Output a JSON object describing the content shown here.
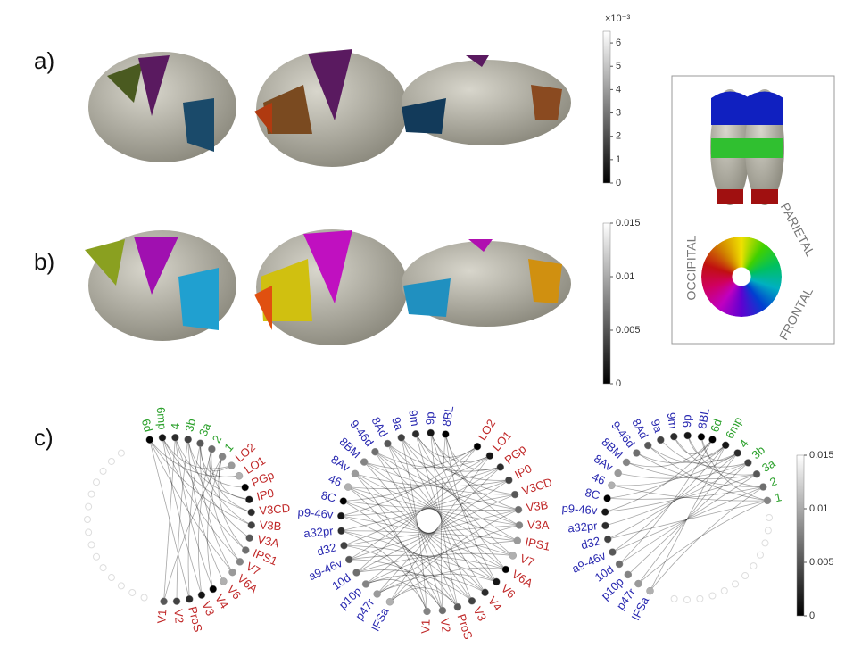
{
  "panel_labels": [
    "a)",
    "b)",
    "c)"
  ],
  "colorbars": [
    {
      "exponent_label": "×10⁻³",
      "ticks": [
        0,
        1,
        2,
        3,
        4,
        5,
        6
      ],
      "range": [
        0,
        6.5
      ]
    },
    {
      "ticks": [
        0,
        0.005,
        0.01,
        0.015
      ],
      "range": [
        0,
        0.015
      ]
    },
    {
      "ticks": [
        0,
        0.005,
        0.01,
        0.015
      ],
      "range": [
        0,
        0.015
      ]
    }
  ],
  "legend": {
    "labels": [
      "OCCIPITAL",
      "PARIETAL",
      "FRONTAL"
    ]
  },
  "circles": [
    {
      "nodes": [
        {
          "label": "6d",
          "color": "#2aa02a"
        },
        {
          "label": "6mp",
          "color": "#2aa02a"
        },
        {
          "label": "4",
          "color": "#2aa02a"
        },
        {
          "label": "3b",
          "color": "#2aa02a"
        },
        {
          "label": "3a",
          "color": "#2aa02a"
        },
        {
          "label": "2",
          "color": "#2aa02a"
        },
        {
          "label": "1",
          "color": "#2aa02a"
        },
        {
          "label": "LO2",
          "color": "#c02828"
        },
        {
          "label": "LO1",
          "color": "#c02828"
        },
        {
          "label": "PGp",
          "color": "#c02828"
        },
        {
          "label": "IP0",
          "color": "#c02828"
        },
        {
          "label": "V3CD",
          "color": "#c02828"
        },
        {
          "label": "V3B",
          "color": "#c02828"
        },
        {
          "label": "V3A",
          "color": "#c02828"
        },
        {
          "label": "IPS1",
          "color": "#c02828"
        },
        {
          "label": "V7",
          "color": "#c02828"
        },
        {
          "label": "V6A",
          "color": "#c02828"
        },
        {
          "label": "V6",
          "color": "#c02828"
        },
        {
          "label": "V4",
          "color": "#c02828"
        },
        {
          "label": "V3",
          "color": "#c02828"
        },
        {
          "label": "ProS",
          "color": "#c02828"
        },
        {
          "label": "V2",
          "color": "#c02828"
        },
        {
          "label": "V1",
          "color": "#c02828"
        }
      ]
    },
    {
      "nodes": [
        {
          "label": "8BL",
          "color": "#2828b0"
        },
        {
          "label": "9p",
          "color": "#2828b0"
        },
        {
          "label": "9m",
          "color": "#2828b0"
        },
        {
          "label": "9a",
          "color": "#2828b0"
        },
        {
          "label": "8Ad",
          "color": "#2828b0"
        },
        {
          "label": "9-46d",
          "color": "#2828b0"
        },
        {
          "label": "8BM",
          "color": "#2828b0"
        },
        {
          "label": "8Av",
          "color": "#2828b0"
        },
        {
          "label": "46",
          "color": "#2828b0"
        },
        {
          "label": "8C",
          "color": "#2828b0"
        },
        {
          "label": "p9-46v",
          "color": "#2828b0"
        },
        {
          "label": "a32pr",
          "color": "#2828b0"
        },
        {
          "label": "d32",
          "color": "#2828b0"
        },
        {
          "label": "a9-46v",
          "color": "#2828b0"
        },
        {
          "label": "10d",
          "color": "#2828b0"
        },
        {
          "label": "p10p",
          "color": "#2828b0"
        },
        {
          "label": "p47r",
          "color": "#2828b0"
        },
        {
          "label": "IFSa",
          "color": "#2828b0"
        },
        {
          "label": "LO2",
          "color": "#c02828"
        },
        {
          "label": "LO1",
          "color": "#c02828"
        },
        {
          "label": "PGp",
          "color": "#c02828"
        },
        {
          "label": "IP0",
          "color": "#c02828"
        },
        {
          "label": "V3CD",
          "color": "#c02828"
        },
        {
          "label": "V3B",
          "color": "#c02828"
        },
        {
          "label": "V3A",
          "color": "#c02828"
        },
        {
          "label": "IPS1",
          "color": "#c02828"
        },
        {
          "label": "V7",
          "color": "#c02828"
        },
        {
          "label": "V6A",
          "color": "#c02828"
        },
        {
          "label": "V6",
          "color": "#c02828"
        },
        {
          "label": "V4",
          "color": "#c02828"
        },
        {
          "label": "V3",
          "color": "#c02828"
        },
        {
          "label": "ProS",
          "color": "#c02828"
        },
        {
          "label": "V2",
          "color": "#c02828"
        },
        {
          "label": "V1",
          "color": "#c02828"
        }
      ]
    },
    {
      "nodes": [
        {
          "label": "8BL",
          "color": "#2828b0"
        },
        {
          "label": "9p",
          "color": "#2828b0"
        },
        {
          "label": "9m",
          "color": "#2828b0"
        },
        {
          "label": "9a",
          "color": "#2828b0"
        },
        {
          "label": "8Ad",
          "color": "#2828b0"
        },
        {
          "label": "9-46d",
          "color": "#2828b0"
        },
        {
          "label": "8BM",
          "color": "#2828b0"
        },
        {
          "label": "8Av",
          "color": "#2828b0"
        },
        {
          "label": "46",
          "color": "#2828b0"
        },
        {
          "label": "8C",
          "color": "#2828b0"
        },
        {
          "label": "p9-46v",
          "color": "#2828b0"
        },
        {
          "label": "a32pr",
          "color": "#2828b0"
        },
        {
          "label": "d32",
          "color": "#2828b0"
        },
        {
          "label": "a9-46v",
          "color": "#2828b0"
        },
        {
          "label": "10d",
          "color": "#2828b0"
        },
        {
          "label": "p10p",
          "color": "#2828b0"
        },
        {
          "label": "p47r",
          "color": "#2828b0"
        },
        {
          "label": "IFSa",
          "color": "#2828b0"
        },
        {
          "label": "6d",
          "color": "#2aa02a"
        },
        {
          "label": "6mp",
          "color": "#2aa02a"
        },
        {
          "label": "4",
          "color": "#2aa02a"
        },
        {
          "label": "3b",
          "color": "#2aa02a"
        },
        {
          "label": "3a",
          "color": "#2aa02a"
        },
        {
          "label": "2",
          "color": "#2aa02a"
        },
        {
          "label": "1",
          "color": "#2aa02a"
        }
      ]
    }
  ]
}
